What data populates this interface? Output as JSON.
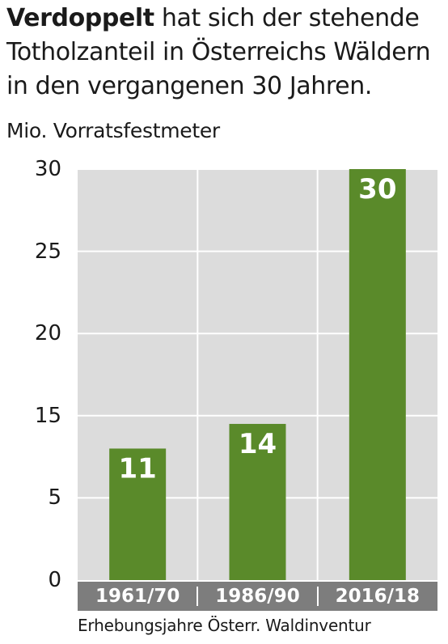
{
  "headline": {
    "bold": "Verdoppelt",
    "rest": " hat sich der stehende Totholzanteil in Österreichs Wäldern in den vergangenen 30 Jahren."
  },
  "chart_data": {
    "type": "bar",
    "title": "",
    "ylabel": "Mio. Vorratsfestmeter",
    "xlabel": "Erhebungsjahre Österr. Waldinventur",
    "categories": [
      "1961/70",
      "1986/90",
      "2016/18"
    ],
    "values": [
      11,
      14,
      30
    ],
    "data_labels": [
      "11",
      "14",
      "30"
    ],
    "yticks": [
      0,
      5,
      15,
      20,
      25,
      30
    ],
    "ylim": [
      0,
      30
    ],
    "grid": true,
    "colors": {
      "bar": "#5a8a2a",
      "plot_bg": "#dcdcdc",
      "category_band": "#7d7d7d",
      "grid": "#ffffff"
    }
  }
}
